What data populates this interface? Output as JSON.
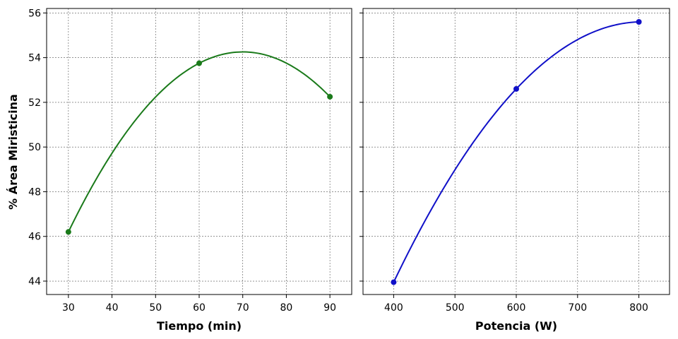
{
  "figure": {
    "ylabel": "% Área Miristicina"
  },
  "chart_data": [
    {
      "type": "line",
      "xlabel": "Tiempo (min)",
      "ylabel": "% Área Miristicina",
      "xlim": [
        25,
        95
      ],
      "ylim": [
        43.4,
        56.2
      ],
      "xticks": [
        30,
        40,
        50,
        60,
        70,
        80,
        90
      ],
      "yticks": [
        44,
        46,
        48,
        50,
        52,
        54,
        56
      ],
      "grid": true,
      "points": {
        "x": [
          30,
          60,
          90
        ],
        "y": [
          46.2,
          53.75,
          52.25
        ]
      },
      "curve": "quadratic-fit",
      "color": "#1a7a1a"
    },
    {
      "type": "line",
      "xlabel": "Potencia (W)",
      "ylabel": "",
      "xlim": [
        350,
        850
      ],
      "ylim": [
        43.4,
        56.2
      ],
      "xticks": [
        400,
        500,
        600,
        700,
        800
      ],
      "yticks": [
        44,
        46,
        48,
        50,
        52,
        54,
        56
      ],
      "grid": true,
      "points": {
        "x": [
          400,
          600,
          800
        ],
        "y": [
          43.95,
          52.6,
          55.6
        ]
      },
      "curve": "quadratic-fit",
      "color": "#1010c8"
    }
  ]
}
